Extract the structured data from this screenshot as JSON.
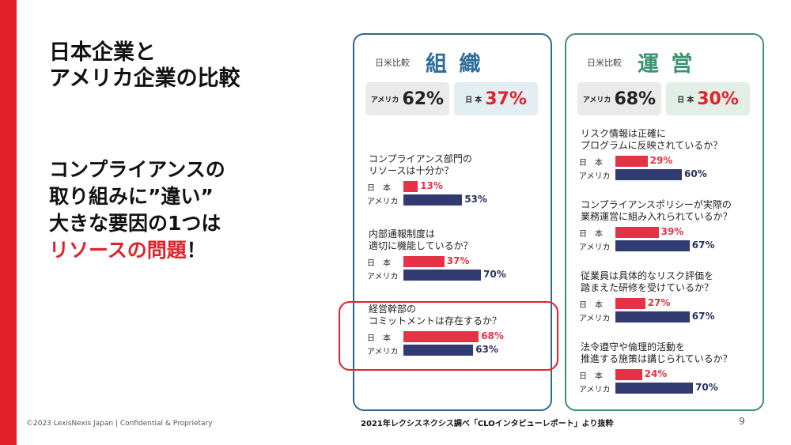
{
  "slide": {
    "title_line1": "日本企業と",
    "title_line2": "アメリカ企業の比較",
    "sub_line1": "コンプライアンスの",
    "sub_line2": "取り組みに”違い”",
    "sub_line3": "大きな要因の1つは",
    "sub_red": "リソースの問題",
    "sub_mark": "！",
    "copyright": "©2023 LexisNexis Japan | Confidential & Proprietary",
    "source": "2021年レクシスネクシス調べ「CLOインタビューレポート」より抜粋",
    "page_number": "9"
  },
  "colors": {
    "accent": "#e3212b",
    "japan_bar": "#e63246",
    "us_bar": "#323a72",
    "org_border": "#2e6a88",
    "ops_border": "#3f8f70"
  },
  "chart_data": [
    {
      "type": "bar",
      "compare_label": "日米比較",
      "title": "組 織",
      "summary": {
        "us_label": "アメリカ",
        "us_value": "62%",
        "jp_label": "日 本",
        "jp_value": "37%"
      },
      "series_labels": {
        "jp": "日　本",
        "us": "アメリカ"
      },
      "questions": [
        {
          "text": "コンプライアンス部門の\nリソースは十分か？",
          "jp": 13,
          "us": 53,
          "jp_label": "13%",
          "us_label": "53%"
        },
        {
          "text": "内部通報制度は\n適切に機能しているか？",
          "jp": 37,
          "us": 70,
          "jp_label": "37%",
          "us_label": "70%"
        },
        {
          "text": "経営幹部の\nコミットメントは存在するか？",
          "jp": 68,
          "us": 63,
          "jp_label": "68%",
          "us_label": "63%"
        }
      ],
      "xlim": [
        0,
        100
      ]
    },
    {
      "type": "bar",
      "compare_label": "日米比較",
      "title": "運 営",
      "summary": {
        "us_label": "アメリカ",
        "us_value": "68%",
        "jp_label": "日 本",
        "jp_value": "30%"
      },
      "series_labels": {
        "jp": "日　本",
        "us": "アメリカ"
      },
      "questions": [
        {
          "text": "リスク情報は正確に\nプログラムに反映されているか？",
          "jp": 29,
          "us": 60,
          "jp_label": "29%",
          "us_label": "60%"
        },
        {
          "text": "コンプライアンスポリシーが実際の\n業務運営に組み入れられているか？",
          "jp": 39,
          "us": 67,
          "jp_label": "39%",
          "us_label": "67%"
        },
        {
          "text": "従業員は具体的なリスク評価を\n踏まえた研修を受けているか？",
          "jp": 27,
          "us": 67,
          "jp_label": "27%",
          "us_label": "67%"
        },
        {
          "text": "法令遵守や倫理的活動を\n推進する施策は講じられているか？",
          "jp": 24,
          "us": 70,
          "jp_label": "24%",
          "us_label": "70%"
        }
      ],
      "xlim": [
        0,
        100
      ]
    }
  ]
}
